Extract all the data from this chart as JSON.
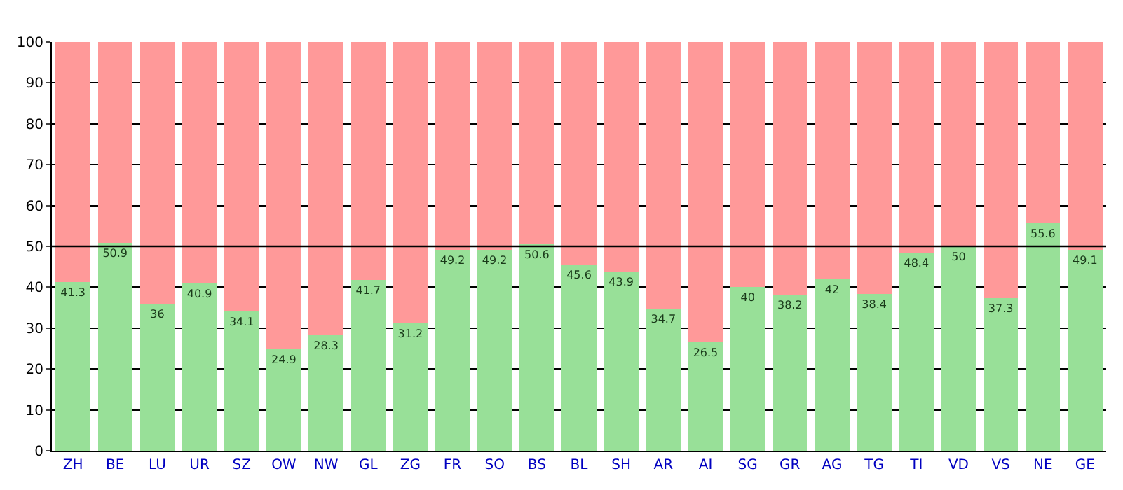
{
  "chart_data": {
    "type": "bar",
    "stacked": true,
    "categories": [
      "ZH",
      "BE",
      "LU",
      "UR",
      "SZ",
      "OW",
      "NW",
      "GL",
      "ZG",
      "FR",
      "SO",
      "BS",
      "BL",
      "SH",
      "AR",
      "AI",
      "SG",
      "GR",
      "AG",
      "TG",
      "TI",
      "VD",
      "VS",
      "NE",
      "GE"
    ],
    "series": [
      {
        "color": "#98e098",
        "values": [
          41.3,
          50.9,
          36,
          40.9,
          34.1,
          24.9,
          28.3,
          41.7,
          31.2,
          49.2,
          49.2,
          50.6,
          45.6,
          43.9,
          34.7,
          26.5,
          40,
          38.2,
          42,
          38.4,
          48.4,
          50,
          37.3,
          55.6,
          49.1
        ],
        "value_labels": [
          "41.3",
          "50.9",
          "36",
          "40.9",
          "34.1",
          "24.9",
          "28.3",
          "41.7",
          "31.2",
          "49.2",
          "49.2",
          "50.6",
          "45.6",
          "43.9",
          "34.7",
          "26.5",
          "40",
          "38.2",
          "42",
          "38.4",
          "48.4",
          "50",
          "37.3",
          "55.6",
          "49.1"
        ]
      },
      {
        "color": "#ff9999",
        "values": [
          58.7,
          49.1,
          64,
          59.1,
          65.9,
          75.1,
          71.7,
          58.3,
          68.8,
          50.8,
          50.8,
          49.4,
          54.4,
          56.1,
          65.3,
          73.5,
          60,
          61.8,
          58,
          61.6,
          51.6,
          50,
          62.7,
          44.4,
          50.9
        ]
      }
    ],
    "ylim": [
      0,
      100
    ],
    "yticks": [
      0,
      10,
      20,
      30,
      40,
      50,
      60,
      70,
      80,
      90,
      100
    ],
    "grid": "y",
    "ref_lines": [
      {
        "axis": "y",
        "value": 50,
        "color": "#000000"
      }
    ]
  }
}
